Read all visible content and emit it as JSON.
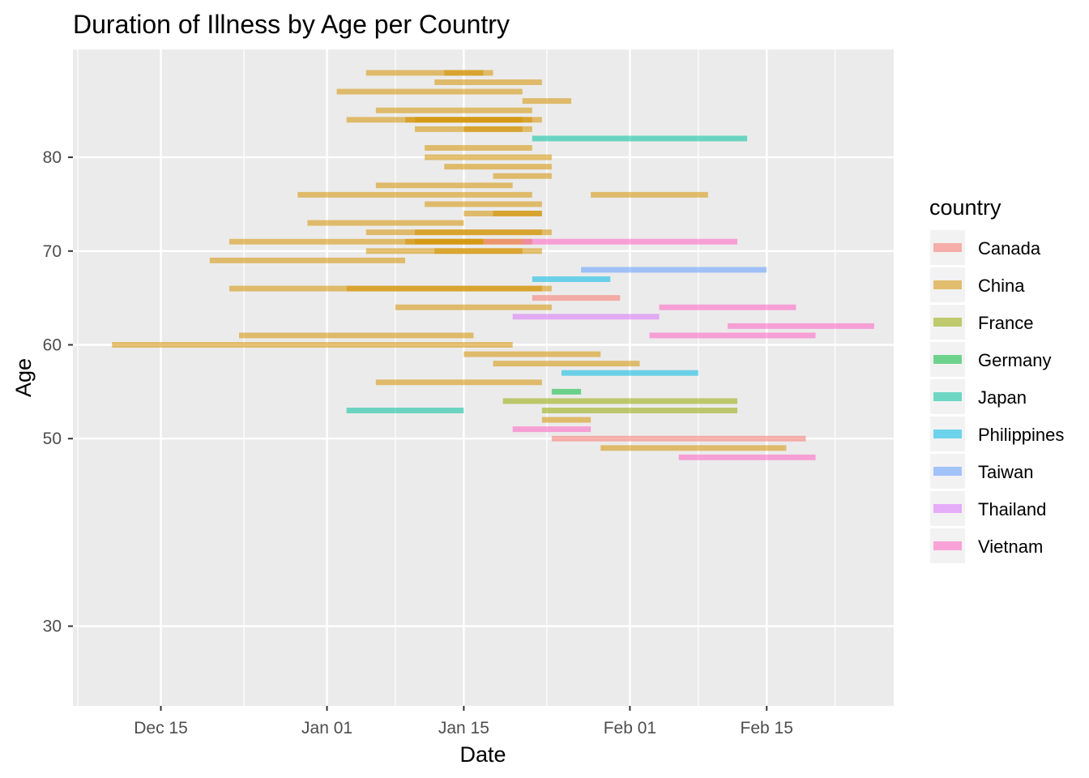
{
  "chart_data": {
    "type": "bar",
    "orientation": "horizontal-range",
    "title": "Duration of Illness by Age per Country",
    "xlabel": "Date",
    "ylabel": "Age",
    "x_scale": "date",
    "xlim": [
      "2019-12-06",
      "2020-02-28"
    ],
    "ylim": [
      21.5,
      91.5
    ],
    "x_ticks": [
      {
        "date": "2019-12-15",
        "label": "Dec 15"
      },
      {
        "date": "2020-01-01",
        "label": "Jan 01"
      },
      {
        "date": "2020-01-15",
        "label": "Jan 15"
      },
      {
        "date": "2020-02-01",
        "label": "Feb 01"
      },
      {
        "date": "2020-02-15",
        "label": "Feb 15"
      }
    ],
    "y_ticks": [
      30,
      50,
      60,
      70,
      80
    ],
    "grid": true,
    "bar_opacity": 0.55,
    "legend": {
      "title": "country",
      "placement": "right",
      "entries": [
        {
          "name": "Canada",
          "color": "#F8766D"
        },
        {
          "name": "China",
          "color": "#D39200"
        },
        {
          "name": "France",
          "color": "#93AA00"
        },
        {
          "name": "Germany",
          "color": "#00BA38"
        },
        {
          "name": "Japan",
          "color": "#00C19F"
        },
        {
          "name": "Philippines",
          "color": "#00B9E3"
        },
        {
          "name": "Taiwan",
          "color": "#619CFF"
        },
        {
          "name": "Thailand",
          "color": "#DB72FB"
        },
        {
          "name": "Vietnam",
          "color": "#FF61C3"
        }
      ]
    },
    "segments": [
      {
        "country": "China",
        "age": 89,
        "start": "2020-01-05",
        "end": "2020-01-18"
      },
      {
        "country": "China",
        "age": 89,
        "start": "2020-01-13",
        "end": "2020-01-17"
      },
      {
        "country": "China",
        "age": 88,
        "start": "2020-01-12",
        "end": "2020-01-23"
      },
      {
        "country": "China",
        "age": 87,
        "start": "2020-01-02",
        "end": "2020-01-21"
      },
      {
        "country": "China",
        "age": 86,
        "start": "2020-01-21",
        "end": "2020-01-26"
      },
      {
        "country": "China",
        "age": 85,
        "start": "2020-01-06",
        "end": "2020-01-22"
      },
      {
        "country": "China",
        "age": 84,
        "start": "2020-01-03",
        "end": "2020-01-23"
      },
      {
        "country": "China",
        "age": 84,
        "start": "2020-01-09",
        "end": "2020-01-22"
      },
      {
        "country": "China",
        "age": 84,
        "start": "2020-01-10",
        "end": "2020-01-21"
      },
      {
        "country": "China",
        "age": 83,
        "start": "2020-01-10",
        "end": "2020-01-22"
      },
      {
        "country": "China",
        "age": 83,
        "start": "2020-01-15",
        "end": "2020-01-21"
      },
      {
        "country": "Japan",
        "age": 82,
        "start": "2020-01-22",
        "end": "2020-02-13"
      },
      {
        "country": "China",
        "age": 81,
        "start": "2020-01-11",
        "end": "2020-01-22"
      },
      {
        "country": "China",
        "age": 80,
        "start": "2020-01-11",
        "end": "2020-01-24"
      },
      {
        "country": "China",
        "age": 79,
        "start": "2020-01-13",
        "end": "2020-01-24"
      },
      {
        "country": "China",
        "age": 78,
        "start": "2020-01-18",
        "end": "2020-01-24"
      },
      {
        "country": "China",
        "age": 77,
        "start": "2020-01-06",
        "end": "2020-01-20"
      },
      {
        "country": "China",
        "age": 76,
        "start": "2019-12-29",
        "end": "2020-01-22"
      },
      {
        "country": "China",
        "age": 76,
        "start": "2020-01-28",
        "end": "2020-02-09"
      },
      {
        "country": "China",
        "age": 75,
        "start": "2020-01-11",
        "end": "2020-01-23"
      },
      {
        "country": "China",
        "age": 74,
        "start": "2020-01-15",
        "end": "2020-01-23"
      },
      {
        "country": "China",
        "age": 74,
        "start": "2020-01-18",
        "end": "2020-01-23"
      },
      {
        "country": "China",
        "age": 73,
        "start": "2019-12-30",
        "end": "2020-01-15"
      },
      {
        "country": "China",
        "age": 72,
        "start": "2020-01-05",
        "end": "2020-01-24"
      },
      {
        "country": "China",
        "age": 72,
        "start": "2020-01-10",
        "end": "2020-01-23"
      },
      {
        "country": "China",
        "age": 71,
        "start": "2019-12-22",
        "end": "2020-01-22"
      },
      {
        "country": "China",
        "age": 71,
        "start": "2020-01-09",
        "end": "2020-01-17"
      },
      {
        "country": "China",
        "age": 71,
        "start": "2020-01-10",
        "end": "2020-01-17"
      },
      {
        "country": "Canada",
        "age": 71,
        "start": "2020-01-17",
        "end": "2020-01-21"
      },
      {
        "country": "Vietnam",
        "age": 71,
        "start": "2020-01-21",
        "end": "2020-02-12"
      },
      {
        "country": "China",
        "age": 70,
        "start": "2020-01-05",
        "end": "2020-01-23"
      },
      {
        "country": "China",
        "age": 70,
        "start": "2020-01-12",
        "end": "2020-01-21"
      },
      {
        "country": "China",
        "age": 69,
        "start": "2019-12-20",
        "end": "2020-01-09"
      },
      {
        "country": "Taiwan",
        "age": 68,
        "start": "2020-01-27",
        "end": "2020-02-15"
      },
      {
        "country": "Philippines",
        "age": 67,
        "start": "2020-01-22",
        "end": "2020-01-30"
      },
      {
        "country": "China",
        "age": 66,
        "start": "2019-12-22",
        "end": "2020-01-24"
      },
      {
        "country": "China",
        "age": 66,
        "start": "2020-01-03",
        "end": "2020-01-23"
      },
      {
        "country": "Canada",
        "age": 65,
        "start": "2020-01-22",
        "end": "2020-01-31"
      },
      {
        "country": "China",
        "age": 64,
        "start": "2020-01-08",
        "end": "2020-01-24"
      },
      {
        "country": "Vietnam",
        "age": 64,
        "start": "2020-02-04",
        "end": "2020-02-18"
      },
      {
        "country": "Thailand",
        "age": 63,
        "start": "2020-01-20",
        "end": "2020-02-04"
      },
      {
        "country": "Vietnam",
        "age": 62,
        "start": "2020-02-11",
        "end": "2020-02-26"
      },
      {
        "country": "China",
        "age": 61,
        "start": "2019-12-23",
        "end": "2020-01-16"
      },
      {
        "country": "Vietnam",
        "age": 61,
        "start": "2020-02-03",
        "end": "2020-02-20"
      },
      {
        "country": "China",
        "age": 60,
        "start": "2019-12-10",
        "end": "2020-01-20"
      },
      {
        "country": "China",
        "age": 59,
        "start": "2020-01-15",
        "end": "2020-01-29"
      },
      {
        "country": "China",
        "age": 58,
        "start": "2020-01-18",
        "end": "2020-02-02"
      },
      {
        "country": "Philippines",
        "age": 57,
        "start": "2020-01-25",
        "end": "2020-02-08"
      },
      {
        "country": "China",
        "age": 56,
        "start": "2020-01-06",
        "end": "2020-01-23"
      },
      {
        "country": "Germany",
        "age": 55,
        "start": "2020-01-24",
        "end": "2020-01-27"
      },
      {
        "country": "France",
        "age": 54,
        "start": "2020-01-19",
        "end": "2020-02-12"
      },
      {
        "country": "France",
        "age": 53,
        "start": "2020-01-23",
        "end": "2020-02-12"
      },
      {
        "country": "Japan",
        "age": 53,
        "start": "2020-01-03",
        "end": "2020-01-15"
      },
      {
        "country": "China",
        "age": 52,
        "start": "2020-01-23",
        "end": "2020-01-28"
      },
      {
        "country": "Vietnam",
        "age": 51,
        "start": "2020-01-20",
        "end": "2020-01-28"
      },
      {
        "country": "Canada",
        "age": 50,
        "start": "2020-01-24",
        "end": "2020-02-19"
      },
      {
        "country": "China",
        "age": 49,
        "start": "2020-01-29",
        "end": "2020-02-17"
      },
      {
        "country": "Vietnam",
        "age": 48,
        "start": "2020-02-06",
        "end": "2020-02-20"
      }
    ]
  }
}
